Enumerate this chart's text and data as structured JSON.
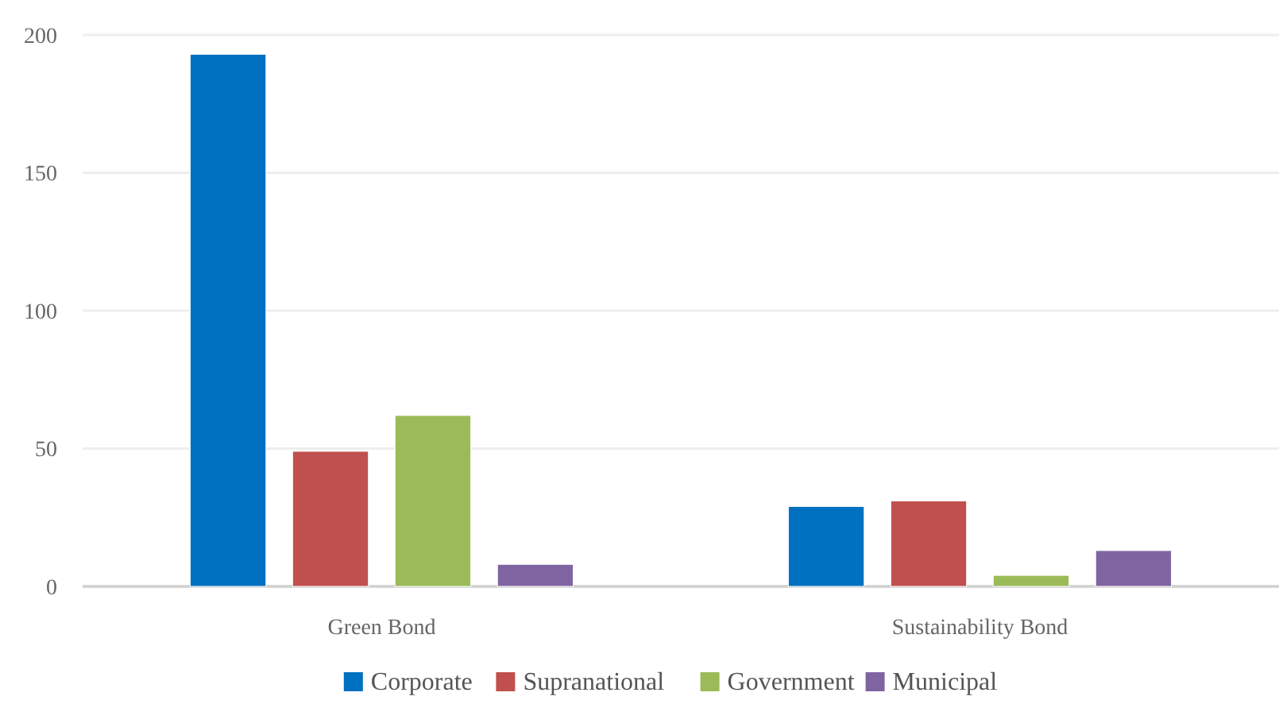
{
  "chart_data": {
    "type": "bar",
    "categories": [
      "Green Bond",
      "Sustainability Bond"
    ],
    "series": [
      {
        "name": "Corporate",
        "color": "#0070c0",
        "values": [
          193,
          29
        ]
      },
      {
        "name": "Supranational",
        "color": "#c0504d",
        "values": [
          49,
          31
        ]
      },
      {
        "name": "Government",
        "color": "#9bbb59",
        "values": [
          62,
          4
        ]
      },
      {
        "name": "Municipal",
        "color": "#8064a2",
        "values": [
          8,
          13
        ]
      }
    ],
    "ylim": [
      0,
      200
    ],
    "yticks": [
      0,
      50,
      100,
      150,
      200
    ],
    "grid": "y",
    "legend": "bottom"
  }
}
